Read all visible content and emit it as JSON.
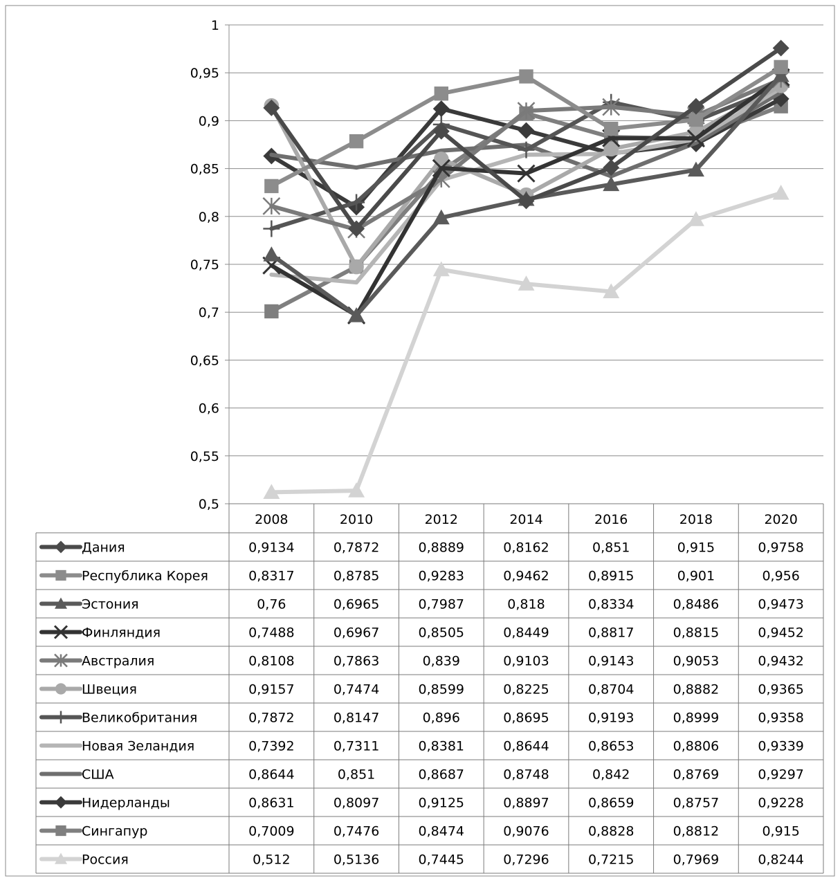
{
  "chart_data": {
    "type": "line",
    "title": "",
    "xlabel": "",
    "ylabel": "",
    "ylim": [
      0.5,
      1
    ],
    "y_ticks": [
      "0,5",
      "0,55",
      "0,6",
      "0,65",
      "0,7",
      "0,75",
      "0,8",
      "0,85",
      "0,9",
      "0,95",
      "1"
    ],
    "y_tick_values": [
      0.5,
      0.55,
      0.6,
      0.65,
      0.7,
      0.75,
      0.8,
      0.85,
      0.9,
      0.95,
      1
    ],
    "grid": true,
    "legend": "data-table-below",
    "categories": [
      "2008",
      "2010",
      "2012",
      "2014",
      "2016",
      "2018",
      "2020"
    ],
    "series": [
      {
        "name": "Дания",
        "color": "#4a4a4a",
        "marker": "diamond",
        "values": [
          0.9134,
          0.7872,
          0.8889,
          0.8162,
          0.851,
          0.915,
          0.9758
        ],
        "labels": [
          "0,9134",
          "0,7872",
          "0,8889",
          "0,8162",
          "0,851",
          "0,915",
          "0,9758"
        ]
      },
      {
        "name": "Республика Корея",
        "color": "#8c8c8c",
        "marker": "square",
        "values": [
          0.8317,
          0.8785,
          0.9283,
          0.9462,
          0.8915,
          0.901,
          0.956
        ],
        "labels": [
          "0,8317",
          "0,8785",
          "0,9283",
          "0,9462",
          "0,8915",
          "0,901",
          "0,956"
        ]
      },
      {
        "name": "Эстония",
        "color": "#5a5a5a",
        "marker": "triangle",
        "values": [
          0.76,
          0.6965,
          0.7987,
          0.818,
          0.8334,
          0.8486,
          0.9473
        ],
        "labels": [
          "0,76",
          "0,6965",
          "0,7987",
          "0,818",
          "0,8334",
          "0,8486",
          "0,9473"
        ]
      },
      {
        "name": "Финляндия",
        "color": "#333333",
        "marker": "x",
        "values": [
          0.7488,
          0.6967,
          0.8505,
          0.8449,
          0.8817,
          0.8815,
          0.9452
        ],
        "labels": [
          "0,7488",
          "0,6967",
          "0,8505",
          "0,8449",
          "0,8817",
          "0,8815",
          "0,9452"
        ]
      },
      {
        "name": "Австралия",
        "color": "#7a7a7a",
        "marker": "star",
        "values": [
          0.8108,
          0.7863,
          0.839,
          0.9103,
          0.9143,
          0.9053,
          0.9432
        ],
        "labels": [
          "0,8108",
          "0,7863",
          "0,839",
          "0,9103",
          "0,9143",
          "0,9053",
          "0,9432"
        ]
      },
      {
        "name": "Швеция",
        "color": "#a9a9a9",
        "marker": "circle",
        "values": [
          0.9157,
          0.7474,
          0.8599,
          0.8225,
          0.8704,
          0.8882,
          0.9365
        ],
        "labels": [
          "0,9157",
          "0,7474",
          "0,8599",
          "0,8225",
          "0,8704",
          "0,8882",
          "0,9365"
        ]
      },
      {
        "name": "Великобритания",
        "color": "#555555",
        "marker": "plus",
        "values": [
          0.7872,
          0.8147,
          0.896,
          0.8695,
          0.9193,
          0.8999,
          0.9358
        ],
        "labels": [
          "0,7872",
          "0,8147",
          "0,896",
          "0,8695",
          "0,9193",
          "0,8999",
          "0,9358"
        ]
      },
      {
        "name": "Новая Зеландия",
        "color": "#b5b5b5",
        "marker": "none",
        "values": [
          0.7392,
          0.7311,
          0.8381,
          0.8644,
          0.8653,
          0.8806,
          0.9339
        ],
        "labels": [
          "0,7392",
          "0,7311",
          "0,8381",
          "0,8644",
          "0,8653",
          "0,8806",
          "0,9339"
        ]
      },
      {
        "name": "США",
        "color": "#6e6e6e",
        "marker": "none",
        "values": [
          0.8644,
          0.851,
          0.8687,
          0.8748,
          0.842,
          0.8769,
          0.9297
        ],
        "labels": [
          "0,8644",
          "0,851",
          "0,8687",
          "0,8748",
          "0,842",
          "0,8769",
          "0,9297"
        ]
      },
      {
        "name": "Нидерланды",
        "color": "#3a3a3a",
        "marker": "diamond",
        "values": [
          0.8631,
          0.8097,
          0.9125,
          0.8897,
          0.8659,
          0.8757,
          0.9228
        ],
        "labels": [
          "0,8631",
          "0,8097",
          "0,9125",
          "0,8897",
          "0,8659",
          "0,8757",
          "0,9228"
        ]
      },
      {
        "name": "Сингапур",
        "color": "#7f7f7f",
        "marker": "square",
        "values": [
          0.7009,
          0.7476,
          0.8474,
          0.9076,
          0.8828,
          0.8812,
          0.915
        ],
        "labels": [
          "0,7009",
          "0,7476",
          "0,8474",
          "0,9076",
          "0,8828",
          "0,8812",
          "0,915"
        ]
      },
      {
        "name": "Россия",
        "color": "#d3d3d3",
        "marker": "triangle",
        "values": [
          0.512,
          0.5136,
          0.7445,
          0.7296,
          0.7215,
          0.7969,
          0.8244
        ],
        "labels": [
          "0,512",
          "0,5136",
          "0,7445",
          "0,7296",
          "0,7215",
          "0,7969",
          "0,8244"
        ]
      }
    ]
  }
}
